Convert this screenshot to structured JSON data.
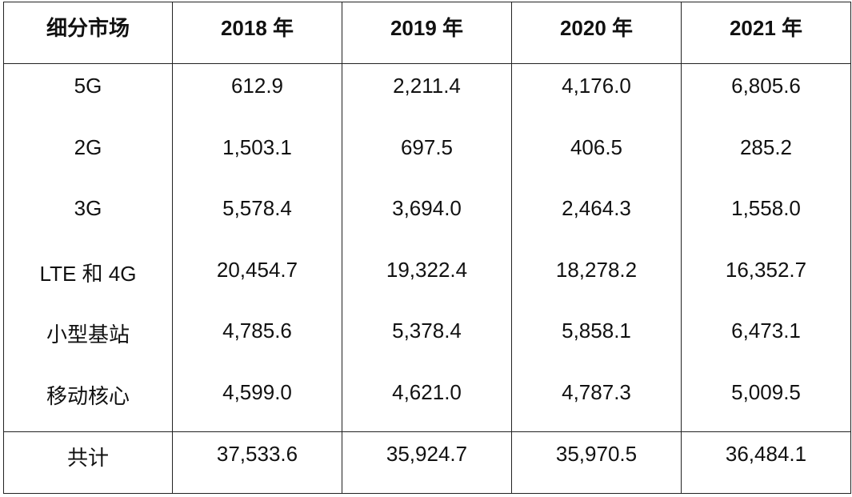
{
  "chart_data": {
    "type": "table",
    "columns": [
      "细分市场",
      "2018 年",
      "2019 年",
      "2020 年",
      "2021 年"
    ],
    "rows": [
      [
        "5G",
        "612.9",
        "2,211.4",
        "4,176.0",
        "6,805.6"
      ],
      [
        "2G",
        "1,503.1",
        "697.5",
        "406.5",
        "285.2"
      ],
      [
        "3G",
        "5,578.4",
        "3,694.0",
        "2,464.3",
        "1,558.0"
      ],
      [
        "LTE 和 4G",
        "20,454.7",
        "19,322.4",
        "18,278.2",
        "16,352.7"
      ],
      [
        "小型基站",
        "4,785.6",
        "5,378.4",
        "5,858.1",
        "6,473.1"
      ],
      [
        "移动核心",
        "4,599.0",
        "4,621.0",
        "4,787.3",
        "5,009.5"
      ]
    ],
    "total": [
      "共计",
      "37,533.6",
      "35,924.7",
      "35,970.5",
      "36,484.1"
    ]
  }
}
